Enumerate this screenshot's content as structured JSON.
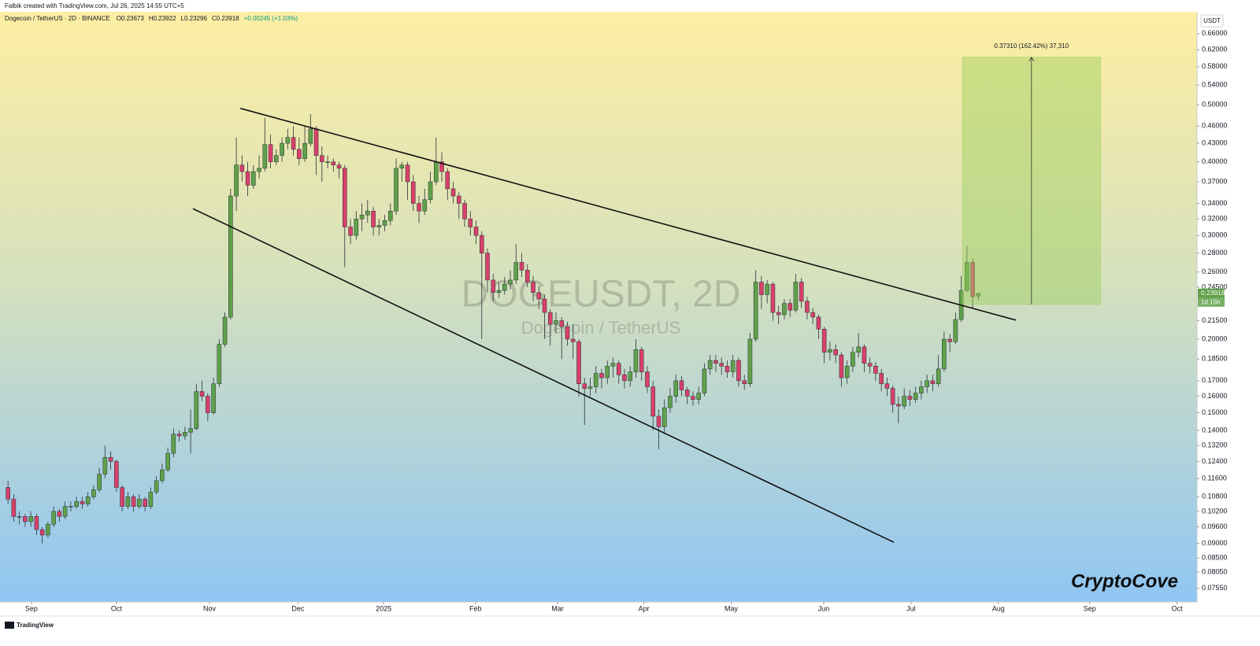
{
  "header": {
    "credit": "Falbik created with TradingView.com, Jul 26, 2025 14:55 UTC+5",
    "symbol": "Dogecoin / TetherUS · 2D · BINANCE",
    "legend": [
      "O0.23673",
      "H0.23922",
      "L0.23296",
      "C0.23918",
      "+0.00245 (+1.03%)"
    ]
  },
  "chart_data": {
    "type": "candlestick",
    "watermark": "DOGEUSDT, 2D",
    "watermark_sub": "Dogecoin / TetherUS",
    "currency": "USDT",
    "log_scale": true,
    "up_color": "#5fa14a",
    "down_color": "#d8416a",
    "xlim": [
      -1.4,
      208.3
    ],
    "ylim": [
      0.0716,
      0.719
    ],
    "xticks": [
      {
        "value": 4.1,
        "label": "Sep"
      },
      {
        "value": 19.0,
        "label": "Oct"
      },
      {
        "value": 35.3,
        "label": "Nov"
      },
      {
        "value": 50.8,
        "label": "Dec"
      },
      {
        "value": 65.8,
        "label": "2025"
      },
      {
        "value": 81.9,
        "label": "Feb"
      },
      {
        "value": 96.3,
        "label": "Mar"
      },
      {
        "value": 111.4,
        "label": "Apr"
      },
      {
        "value": 126.7,
        "label": "May"
      },
      {
        "value": 142.9,
        "label": "Jun"
      },
      {
        "value": 158.2,
        "label": "Jul"
      },
      {
        "value": 173.5,
        "label": "Aug"
      },
      {
        "value": 189.5,
        "label": "Sep"
      },
      {
        "value": 204.8,
        "label": "Oct"
      }
    ],
    "yticks": [
      {
        "value": 0.66,
        "label": "0.66000"
      },
      {
        "value": 0.62,
        "label": "0.62000"
      },
      {
        "value": 0.58,
        "label": "0.58000"
      },
      {
        "value": 0.54,
        "label": "0.54000"
      },
      {
        "value": 0.5,
        "label": "0.50000"
      },
      {
        "value": 0.46,
        "label": "0.46000"
      },
      {
        "value": 0.43,
        "label": "0.43000"
      },
      {
        "value": 0.4,
        "label": "0.40000"
      },
      {
        "value": 0.37,
        "label": "0.37000"
      },
      {
        "value": 0.34,
        "label": "0.34000"
      },
      {
        "value": 0.32,
        "label": "0.32000"
      },
      {
        "value": 0.3,
        "label": "0.30000"
      },
      {
        "value": 0.28,
        "label": "0.28000"
      },
      {
        "value": 0.26,
        "label": "0.26000"
      },
      {
        "value": 0.245,
        "label": "0.24500"
      },
      {
        "value": 0.215,
        "label": "0.21500"
      },
      {
        "value": 0.2,
        "label": "0.20000"
      },
      {
        "value": 0.185,
        "label": "0.18500"
      },
      {
        "value": 0.17,
        "label": "0.17000"
      },
      {
        "value": 0.16,
        "label": "0.16000"
      },
      {
        "value": 0.15,
        "label": "0.15000"
      },
      {
        "value": 0.14,
        "label": "0.14000"
      },
      {
        "value": 0.132,
        "label": "0.13200"
      },
      {
        "value": 0.124,
        "label": "0.12400"
      },
      {
        "value": 0.116,
        "label": "0.11600"
      },
      {
        "value": 0.108,
        "label": "0.10800"
      },
      {
        "value": 0.102,
        "label": "0.10200"
      },
      {
        "value": 0.096,
        "label": "0.09600"
      },
      {
        "value": 0.09,
        "label": "0.09000"
      },
      {
        "value": 0.085,
        "label": "0.08500"
      },
      {
        "value": 0.0805,
        "label": "0.08050"
      },
      {
        "value": 0.0755,
        "label": "0.07550"
      }
    ],
    "candles": [
      [
        0.112,
        0.115,
        0.105,
        0.107
      ],
      [
        0.107,
        0.109,
        0.098,
        0.1
      ],
      [
        0.1,
        0.102,
        0.097,
        0.1
      ],
      [
        0.1,
        0.101,
        0.096,
        0.098
      ],
      [
        0.098,
        0.102,
        0.096,
        0.1
      ],
      [
        0.1,
        0.101,
        0.093,
        0.095
      ],
      [
        0.095,
        0.096,
        0.09,
        0.093
      ],
      [
        0.093,
        0.098,
        0.092,
        0.097
      ],
      [
        0.097,
        0.104,
        0.096,
        0.102
      ],
      [
        0.102,
        0.103,
        0.098,
        0.1
      ],
      [
        0.1,
        0.106,
        0.099,
        0.104
      ],
      [
        0.104,
        0.106,
        0.102,
        0.104
      ],
      [
        0.104,
        0.108,
        0.103,
        0.106
      ],
      [
        0.106,
        0.108,
        0.103,
        0.105
      ],
      [
        0.105,
        0.11,
        0.104,
        0.108
      ],
      [
        0.108,
        0.113,
        0.107,
        0.111
      ],
      [
        0.111,
        0.121,
        0.11,
        0.118
      ],
      [
        0.118,
        0.132,
        0.116,
        0.126
      ],
      [
        0.126,
        0.129,
        0.12,
        0.124
      ],
      [
        0.124,
        0.125,
        0.11,
        0.112
      ],
      [
        0.112,
        0.113,
        0.102,
        0.104
      ],
      [
        0.104,
        0.11,
        0.103,
        0.108
      ],
      [
        0.108,
        0.109,
        0.102,
        0.104
      ],
      [
        0.104,
        0.109,
        0.103,
        0.107
      ],
      [
        0.107,
        0.108,
        0.102,
        0.104
      ],
      [
        0.104,
        0.112,
        0.103,
        0.11
      ],
      [
        0.11,
        0.117,
        0.109,
        0.115
      ],
      [
        0.115,
        0.123,
        0.114,
        0.12
      ],
      [
        0.12,
        0.131,
        0.119,
        0.128
      ],
      [
        0.128,
        0.141,
        0.126,
        0.138
      ],
      [
        0.138,
        0.14,
        0.134,
        0.137
      ],
      [
        0.137,
        0.142,
        0.135,
        0.139
      ],
      [
        0.139,
        0.152,
        0.128,
        0.141
      ],
      [
        0.141,
        0.168,
        0.14,
        0.163
      ],
      [
        0.163,
        0.17,
        0.157,
        0.16
      ],
      [
        0.16,
        0.162,
        0.145,
        0.15
      ],
      [
        0.15,
        0.172,
        0.149,
        0.168
      ],
      [
        0.168,
        0.2,
        0.166,
        0.196
      ],
      [
        0.196,
        0.222,
        0.194,
        0.218
      ],
      [
        0.218,
        0.36,
        0.216,
        0.35
      ],
      [
        0.35,
        0.44,
        0.33,
        0.395
      ],
      [
        0.395,
        0.41,
        0.37,
        0.385
      ],
      [
        0.385,
        0.4,
        0.35,
        0.365
      ],
      [
        0.365,
        0.395,
        0.36,
        0.385
      ],
      [
        0.385,
        0.41,
        0.375,
        0.39
      ],
      [
        0.39,
        0.475,
        0.385,
        0.428
      ],
      [
        0.428,
        0.445,
        0.39,
        0.4
      ],
      [
        0.4,
        0.42,
        0.395,
        0.41
      ],
      [
        0.41,
        0.44,
        0.4,
        0.43
      ],
      [
        0.43,
        0.455,
        0.42,
        0.44
      ],
      [
        0.44,
        0.46,
        0.41,
        0.42
      ],
      [
        0.42,
        0.44,
        0.395,
        0.405
      ],
      [
        0.405,
        0.46,
        0.4,
        0.43
      ],
      [
        0.43,
        0.482,
        0.425,
        0.455
      ],
      [
        0.455,
        0.46,
        0.38,
        0.41
      ],
      [
        0.41,
        0.425,
        0.37,
        0.4
      ],
      [
        0.4,
        0.41,
        0.39,
        0.4
      ],
      [
        0.4,
        0.405,
        0.385,
        0.395
      ],
      [
        0.395,
        0.4,
        0.375,
        0.39
      ],
      [
        0.39,
        0.395,
        0.265,
        0.31
      ],
      [
        0.31,
        0.32,
        0.29,
        0.3
      ],
      [
        0.3,
        0.33,
        0.295,
        0.32
      ],
      [
        0.32,
        0.34,
        0.305,
        0.325
      ],
      [
        0.325,
        0.345,
        0.315,
        0.33
      ],
      [
        0.33,
        0.335,
        0.3,
        0.31
      ],
      [
        0.31,
        0.32,
        0.3,
        0.312
      ],
      [
        0.312,
        0.325,
        0.305,
        0.318
      ],
      [
        0.318,
        0.34,
        0.312,
        0.33
      ],
      [
        0.33,
        0.405,
        0.325,
        0.39
      ],
      [
        0.39,
        0.4,
        0.37,
        0.395
      ],
      [
        0.395,
        0.4,
        0.345,
        0.37
      ],
      [
        0.37,
        0.38,
        0.33,
        0.34
      ],
      [
        0.34,
        0.35,
        0.315,
        0.33
      ],
      [
        0.33,
        0.36,
        0.325,
        0.345
      ],
      [
        0.345,
        0.385,
        0.34,
        0.37
      ],
      [
        0.37,
        0.44,
        0.365,
        0.4
      ],
      [
        0.4,
        0.415,
        0.37,
        0.385
      ],
      [
        0.385,
        0.39,
        0.345,
        0.36
      ],
      [
        0.36,
        0.37,
        0.34,
        0.35
      ],
      [
        0.35,
        0.355,
        0.32,
        0.34
      ],
      [
        0.34,
        0.345,
        0.31,
        0.32
      ],
      [
        0.32,
        0.33,
        0.3,
        0.31
      ],
      [
        0.31,
        0.318,
        0.29,
        0.3
      ],
      [
        0.3,
        0.305,
        0.2,
        0.28
      ],
      [
        0.28,
        0.285,
        0.24,
        0.252
      ],
      [
        0.252,
        0.258,
        0.232,
        0.24
      ],
      [
        0.24,
        0.25,
        0.235,
        0.242
      ],
      [
        0.242,
        0.255,
        0.238,
        0.248
      ],
      [
        0.248,
        0.262,
        0.243,
        0.252
      ],
      [
        0.252,
        0.29,
        0.248,
        0.27
      ],
      [
        0.27,
        0.28,
        0.255,
        0.262
      ],
      [
        0.262,
        0.268,
        0.245,
        0.25
      ],
      [
        0.25,
        0.256,
        0.232,
        0.24
      ],
      [
        0.24,
        0.246,
        0.225,
        0.234
      ],
      [
        0.234,
        0.238,
        0.2,
        0.222
      ],
      [
        0.222,
        0.225,
        0.195,
        0.212
      ],
      [
        0.212,
        0.222,
        0.205,
        0.215
      ],
      [
        0.215,
        0.218,
        0.185,
        0.21
      ],
      [
        0.21,
        0.214,
        0.195,
        0.2
      ],
      [
        0.2,
        0.212,
        0.185,
        0.198
      ],
      [
        0.198,
        0.2,
        0.16,
        0.168
      ],
      [
        0.168,
        0.172,
        0.143,
        0.165
      ],
      [
        0.165,
        0.172,
        0.16,
        0.166
      ],
      [
        0.166,
        0.18,
        0.162,
        0.175
      ],
      [
        0.175,
        0.178,
        0.165,
        0.172
      ],
      [
        0.172,
        0.184,
        0.168,
        0.18
      ],
      [
        0.18,
        0.186,
        0.172,
        0.182
      ],
      [
        0.182,
        0.184,
        0.168,
        0.174
      ],
      [
        0.174,
        0.178,
        0.165,
        0.17
      ],
      [
        0.17,
        0.18,
        0.166,
        0.176
      ],
      [
        0.176,
        0.2,
        0.172,
        0.192
      ],
      [
        0.192,
        0.194,
        0.17,
        0.176
      ],
      [
        0.176,
        0.18,
        0.162,
        0.166
      ],
      [
        0.166,
        0.17,
        0.14,
        0.148
      ],
      [
        0.148,
        0.152,
        0.13,
        0.142
      ],
      [
        0.142,
        0.158,
        0.138,
        0.153
      ],
      [
        0.153,
        0.165,
        0.15,
        0.16
      ],
      [
        0.16,
        0.174,
        0.156,
        0.17
      ],
      [
        0.17,
        0.173,
        0.16,
        0.164
      ],
      [
        0.164,
        0.166,
        0.155,
        0.16
      ],
      [
        0.16,
        0.163,
        0.154,
        0.158
      ],
      [
        0.158,
        0.166,
        0.155,
        0.162
      ],
      [
        0.162,
        0.182,
        0.16,
        0.178
      ],
      [
        0.178,
        0.188,
        0.174,
        0.184
      ],
      [
        0.184,
        0.188,
        0.176,
        0.182
      ],
      [
        0.182,
        0.186,
        0.174,
        0.18
      ],
      [
        0.18,
        0.184,
        0.172,
        0.176
      ],
      [
        0.176,
        0.188,
        0.172,
        0.184
      ],
      [
        0.184,
        0.186,
        0.166,
        0.17
      ],
      [
        0.17,
        0.174,
        0.164,
        0.168
      ],
      [
        0.168,
        0.205,
        0.166,
        0.2
      ],
      [
        0.2,
        0.262,
        0.198,
        0.25
      ],
      [
        0.25,
        0.256,
        0.225,
        0.238
      ],
      [
        0.238,
        0.252,
        0.23,
        0.248
      ],
      [
        0.248,
        0.25,
        0.215,
        0.222
      ],
      [
        0.222,
        0.228,
        0.212,
        0.22
      ],
      [
        0.22,
        0.234,
        0.216,
        0.23
      ],
      [
        0.23,
        0.234,
        0.218,
        0.224
      ],
      [
        0.224,
        0.258,
        0.222,
        0.25
      ],
      [
        0.25,
        0.254,
        0.226,
        0.232
      ],
      [
        0.232,
        0.236,
        0.216,
        0.222
      ],
      [
        0.222,
        0.226,
        0.212,
        0.218
      ],
      [
        0.218,
        0.22,
        0.2,
        0.208
      ],
      [
        0.208,
        0.21,
        0.182,
        0.19
      ],
      [
        0.19,
        0.198,
        0.184,
        0.192
      ],
      [
        0.192,
        0.196,
        0.182,
        0.188
      ],
      [
        0.188,
        0.19,
        0.166,
        0.172
      ],
      [
        0.172,
        0.184,
        0.168,
        0.18
      ],
      [
        0.18,
        0.194,
        0.176,
        0.19
      ],
      [
        0.19,
        0.205,
        0.186,
        0.194
      ],
      [
        0.194,
        0.196,
        0.176,
        0.182
      ],
      [
        0.182,
        0.186,
        0.175,
        0.18
      ],
      [
        0.18,
        0.183,
        0.17,
        0.175
      ],
      [
        0.175,
        0.178,
        0.163,
        0.168
      ],
      [
        0.168,
        0.172,
        0.16,
        0.165
      ],
      [
        0.165,
        0.167,
        0.15,
        0.155
      ],
      [
        0.155,
        0.16,
        0.144,
        0.154
      ],
      [
        0.154,
        0.165,
        0.152,
        0.16
      ],
      [
        0.16,
        0.164,
        0.154,
        0.158
      ],
      [
        0.158,
        0.166,
        0.156,
        0.162
      ],
      [
        0.162,
        0.17,
        0.158,
        0.166
      ],
      [
        0.166,
        0.174,
        0.162,
        0.17
      ],
      [
        0.17,
        0.174,
        0.163,
        0.168
      ],
      [
        0.168,
        0.188,
        0.166,
        0.178
      ],
      [
        0.178,
        0.206,
        0.176,
        0.2
      ],
      [
        0.2,
        0.204,
        0.19,
        0.198
      ],
      [
        0.198,
        0.222,
        0.196,
        0.216
      ],
      [
        0.216,
        0.256,
        0.214,
        0.242
      ],
      [
        0.242,
        0.288,
        0.24,
        0.27
      ],
      [
        0.27,
        0.274,
        0.226,
        0.236
      ],
      [
        0.23673,
        0.23922,
        0.23296,
        0.23918
      ]
    ],
    "trendlines": [
      {
        "from": [
          40.7,
          0.493
        ],
        "to": [
          176.6,
          0.2154
        ]
      },
      {
        "from": [
          32.4,
          0.333
        ],
        "to": [
          155.2,
          0.0904
        ]
      }
    ],
    "measure": {
      "x_from": 167.2,
      "x_to": 191.4,
      "from": 0.229,
      "to": 0.602,
      "label": "0.37310 (162.42%) 37,310",
      "color": "#9bcf5a"
    },
    "countdown": "1d 15h"
  },
  "footer": {
    "brand": "TradingView",
    "signature": "CryptoCove"
  }
}
